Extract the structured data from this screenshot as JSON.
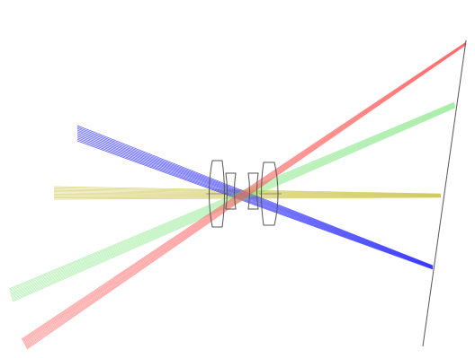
{
  "diagram": {
    "type": "optical-ray-trace",
    "background": "#ffffff",
    "lens_outline_color": "#555555",
    "image_plane_color": "#555555",
    "lens_elements": 4,
    "ray_bundles": [
      {
        "id": "blue-bundle",
        "color": "#2a2aff",
        "field": "upper-left"
      },
      {
        "id": "yellow-bundle",
        "color": "#c8c040",
        "field": "on-axis"
      },
      {
        "id": "green-bundle",
        "color": "#66e066",
        "field": "lower-left"
      },
      {
        "id": "red-bundle",
        "color": "#ff5c5c",
        "field": "lower-left-steep"
      }
    ]
  }
}
